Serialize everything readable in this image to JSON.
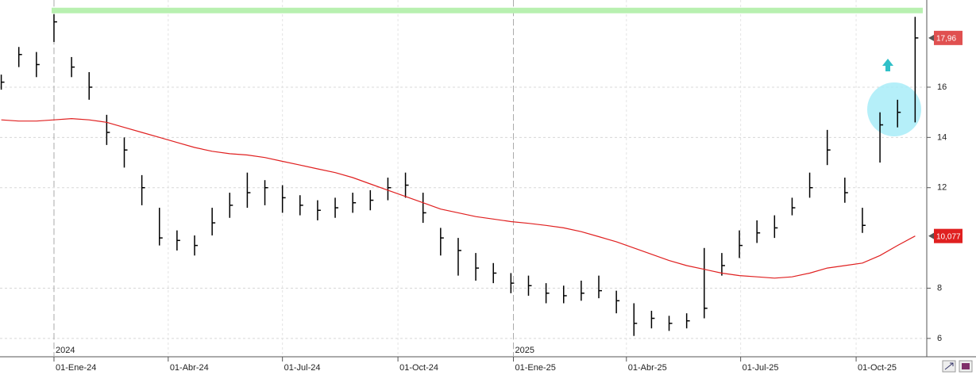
{
  "chart_data": {
    "type": "ohlc",
    "x": [
      "2023-11-20",
      "2023-12-04",
      "2023-12-18",
      "2024-01-01",
      "2024-01-15",
      "2024-01-29",
      "2024-02-12",
      "2024-02-26",
      "2024-03-11",
      "2024-03-25",
      "2024-04-08",
      "2024-04-22",
      "2024-05-06",
      "2024-05-20",
      "2024-06-03",
      "2024-06-17",
      "2024-07-01",
      "2024-07-15",
      "2024-07-29",
      "2024-08-12",
      "2024-08-26",
      "2024-09-09",
      "2024-09-23",
      "2024-10-07",
      "2024-10-21",
      "2024-11-04",
      "2024-11-18",
      "2024-12-02",
      "2024-12-16",
      "2024-12-30",
      "2025-01-13",
      "2025-01-27",
      "2025-02-10",
      "2025-02-24",
      "2025-03-10",
      "2025-03-24",
      "2025-04-07",
      "2025-04-21",
      "2025-05-05",
      "2025-05-19",
      "2025-06-02",
      "2025-06-16",
      "2025-06-30",
      "2025-07-14",
      "2025-07-28",
      "2025-08-11",
      "2025-08-25",
      "2025-09-08",
      "2025-09-22",
      "2025-10-06",
      "2025-10-20",
      "2025-11-03",
      "2025-11-17"
    ],
    "high": [
      16.5,
      17.6,
      17.4,
      18.9,
      17.2,
      16.6,
      14.9,
      14.0,
      12.5,
      11.2,
      10.3,
      10.1,
      11.2,
      11.8,
      12.6,
      12.3,
      12.1,
      11.7,
      11.5,
      11.6,
      11.8,
      11.9,
      12.4,
      12.6,
      11.8,
      10.4,
      10.0,
      9.4,
      9.0,
      8.6,
      8.5,
      8.2,
      8.1,
      8.3,
      8.5,
      7.9,
      7.4,
      7.1,
      6.9,
      7.0,
      9.6,
      9.4,
      10.3,
      10.7,
      10.9,
      11.6,
      12.6,
      14.3,
      12.4,
      11.2,
      15.0,
      15.5,
      18.8
    ],
    "low": [
      15.9,
      16.8,
      16.4,
      17.8,
      16.4,
      15.5,
      13.7,
      12.8,
      11.3,
      9.7,
      9.5,
      9.3,
      10.1,
      10.8,
      11.2,
      11.3,
      11.0,
      10.9,
      10.7,
      10.8,
      11.0,
      11.1,
      11.5,
      11.6,
      10.6,
      9.3,
      8.5,
      8.3,
      8.2,
      7.8,
      7.7,
      7.4,
      7.4,
      7.5,
      7.6,
      7.0,
      6.1,
      6.4,
      6.3,
      6.4,
      6.8,
      8.5,
      9.2,
      9.8,
      10.0,
      10.9,
      11.6,
      12.9,
      11.4,
      10.2,
      13.0,
      14.4,
      14.6
    ],
    "close": [
      16.2,
      17.3,
      16.9,
      18.6,
      16.8,
      16.0,
      14.2,
      13.5,
      12.0,
      10.0,
      9.9,
      9.7,
      10.6,
      11.3,
      11.8,
      12.0,
      11.6,
      11.3,
      11.1,
      11.2,
      11.4,
      11.5,
      12.0,
      12.1,
      11.0,
      10.0,
      9.5,
      8.8,
      8.6,
      8.2,
      8.1,
      7.8,
      7.7,
      7.8,
      7.9,
      7.5,
      6.6,
      6.8,
      6.6,
      6.7,
      7.2,
      8.9,
      9.7,
      10.2,
      10.4,
      11.2,
      12.0,
      13.5,
      11.8,
      10.5,
      14.5,
      15.0,
      17.96
    ],
    "color": "#000000",
    "ma": {
      "color": "#e02020",
      "values": [
        14.7,
        14.65,
        14.65,
        14.7,
        14.75,
        14.7,
        14.6,
        14.4,
        14.2,
        14.0,
        13.8,
        13.6,
        13.45,
        13.35,
        13.3,
        13.2,
        13.05,
        12.9,
        12.75,
        12.6,
        12.4,
        12.15,
        11.9,
        11.65,
        11.4,
        11.15,
        11.0,
        10.85,
        10.75,
        10.65,
        10.58,
        10.5,
        10.4,
        10.25,
        10.05,
        9.85,
        9.6,
        9.35,
        9.1,
        8.9,
        8.75,
        8.6,
        8.5,
        8.45,
        8.4,
        8.45,
        8.6,
        8.8,
        8.9,
        9.0,
        9.3,
        9.7,
        10.077
      ]
    },
    "price_tags": [
      {
        "value": 17.96,
        "label": "17,96",
        "color": "#e05050"
      },
      {
        "value": 10.077,
        "label": "10,077",
        "color": "#e02020"
      }
    ],
    "hline": {
      "value": 19.05,
      "color": "#b8f0b0"
    },
    "xlim": [
      "2023-11-19",
      "2025-11-25"
    ],
    "xticks": [
      {
        "value": "2024-01-01",
        "label": "01-Ene-24"
      },
      {
        "value": "2024-04-01",
        "label": "01-Abr-24"
      },
      {
        "value": "2024-07-01",
        "label": "01-Jul-24"
      },
      {
        "value": "2024-10-01",
        "label": "01-Oct-24"
      },
      {
        "value": "2025-01-01",
        "label": "01-Ene-25"
      },
      {
        "value": "2025-04-01",
        "label": "01-Abr-25"
      },
      {
        "value": "2025-07-01",
        "label": "01-Jul-25"
      },
      {
        "value": "2025-10-01",
        "label": "01-Oct-25"
      }
    ],
    "year_marks": [
      {
        "value": "2024-01-01",
        "label": "2024"
      },
      {
        "value": "2025-01-01",
        "label": "2025"
      }
    ],
    "ylim": [
      5.27,
      19.47
    ],
    "yticks": [
      6,
      8,
      12,
      14,
      16
    ],
    "grid": true
  }
}
